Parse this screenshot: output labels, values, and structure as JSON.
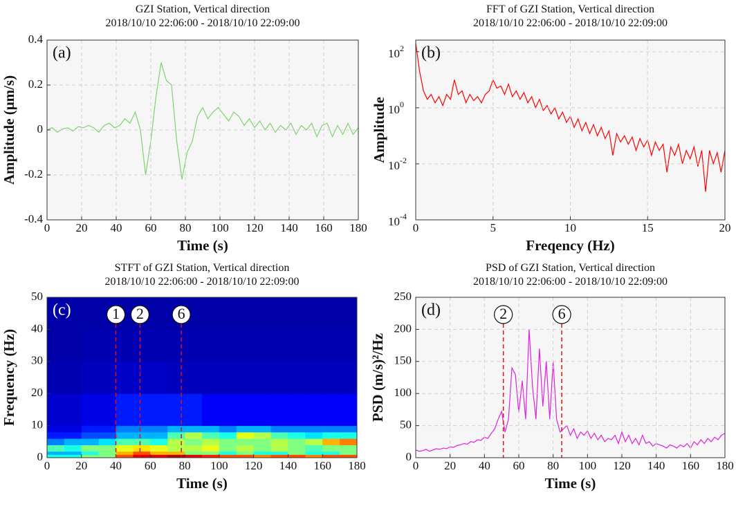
{
  "chart_data": [
    {
      "type": "line",
      "panel_label": "(a)",
      "title": "GZI Station, Vertical direction",
      "subtitle": "2018/10/10 22:06:00 - 2018/10/10 22:09:00",
      "xlabel": "Time (s)",
      "ylabel": "Amplitude (μm/s)",
      "color": "#7fd36f",
      "grid": true,
      "log_y": false,
      "xlim": [
        0,
        180
      ],
      "xticks": [
        0,
        20,
        40,
        60,
        80,
        100,
        120,
        140,
        160,
        180
      ],
      "ylim": [
        -0.4,
        0.4
      ],
      "yticks": [
        -0.4,
        -0.2,
        0,
        0.2,
        0.4
      ],
      "x": [
        0,
        3,
        6,
        9,
        12,
        15,
        18,
        21,
        24,
        27,
        30,
        33,
        36,
        39,
        42,
        45,
        48,
        51,
        54,
        57,
        60,
        63,
        66,
        69,
        72,
        75,
        78,
        81,
        84,
        87,
        90,
        93,
        96,
        99,
        102,
        105,
        108,
        111,
        114,
        117,
        120,
        123,
        126,
        129,
        132,
        135,
        138,
        141,
        144,
        147,
        150,
        153,
        156,
        159,
        162,
        165,
        168,
        171,
        174,
        177,
        180
      ],
      "values": [
        0,
        0.01,
        -0.01,
        0.005,
        0.01,
        -0.005,
        0.015,
        0.01,
        0.02,
        0.01,
        -0.01,
        0.02,
        0.03,
        0.01,
        0.02,
        0.05,
        0.03,
        0.08,
        0.0,
        -0.2,
        -0.05,
        0.15,
        0.3,
        0.22,
        0.2,
        -0.05,
        -0.22,
        -0.1,
        -0.05,
        0.06,
        0.1,
        0.05,
        0.08,
        0.1,
        0.07,
        0.04,
        0.08,
        0.06,
        0.02,
        0.05,
        0.01,
        0.04,
        0.0,
        0.03,
        -0.01,
        0.02,
        0.0,
        0.03,
        -0.02,
        0.02,
        0.0,
        0.03,
        -0.03,
        0.02,
        0.03,
        -0.03,
        0.02,
        -0.02,
        0.03,
        -0.02,
        0.01
      ]
    },
    {
      "type": "line",
      "panel_label": "(b)",
      "title": "FFT of GZI Station, Vertical direction",
      "subtitle": "2018/10/10 22:06:00 - 2018/10/10 22:09:00",
      "xlabel": "Freqency (Hz)",
      "ylabel": "Amplitude",
      "color": "#ff0000",
      "grid": true,
      "log_y": true,
      "xlim": [
        0,
        20
      ],
      "xticks": [
        0,
        5,
        10,
        15,
        20
      ],
      "ylim": [
        0.0001,
        260
      ],
      "yticks": [
        {
          "value": 0.0001,
          "label": "10",
          "exponent": "-4"
        },
        {
          "value": 0.01,
          "label": "10",
          "exponent": "-2"
        },
        {
          "value": 1,
          "label": "10",
          "exponent": "0"
        },
        {
          "value": 100,
          "label": "10",
          "exponent": "2"
        }
      ],
      "x": [
        0,
        0.25,
        0.5,
        0.75,
        1,
        1.25,
        1.5,
        1.75,
        2,
        2.25,
        2.5,
        2.75,
        3,
        3.25,
        3.5,
        3.75,
        4,
        4.25,
        4.5,
        4.75,
        5,
        5.25,
        5.5,
        5.75,
        6,
        6.25,
        6.5,
        6.75,
        7,
        7.25,
        7.5,
        7.75,
        8,
        8.25,
        8.5,
        8.75,
        9,
        9.25,
        9.5,
        9.75,
        10,
        10.25,
        10.5,
        10.75,
        11,
        11.25,
        11.5,
        11.75,
        12,
        12.25,
        12.5,
        12.75,
        13,
        13.25,
        13.5,
        13.75,
        14,
        14.25,
        14.5,
        14.75,
        15,
        15.25,
        15.5,
        15.75,
        16,
        16.25,
        16.5,
        16.75,
        17,
        17.25,
        17.5,
        17.75,
        18,
        18.25,
        18.5,
        18.75,
        19,
        19.25,
        19.5,
        19.75,
        20
      ],
      "values": [
        200,
        20,
        4,
        2,
        3,
        1.5,
        2.5,
        1.2,
        3,
        2,
        10,
        3,
        4,
        1.5,
        3,
        1.8,
        2.5,
        1.5,
        3,
        4,
        10,
        5,
        6,
        3,
        7,
        2.5,
        4,
        2,
        3.5,
        1.5,
        2.5,
        1,
        2,
        0.8,
        1.2,
        0.6,
        1,
        0.4,
        0.7,
        0.3,
        0.5,
        0.2,
        0.4,
        0.15,
        0.3,
        0.12,
        0.25,
        0.1,
        0.2,
        0.08,
        0.15,
        0.02,
        0.12,
        0.06,
        0.1,
        0.05,
        0.09,
        0.03,
        0.08,
        0.04,
        0.07,
        0.02,
        0.06,
        0.03,
        0.05,
        0.005,
        0.04,
        0.02,
        0.05,
        0.01,
        0.03,
        0.015,
        0.04,
        0.008,
        0.03,
        0.001,
        0.03,
        0.01,
        0.025,
        0.005,
        0.03
      ]
    },
    {
      "type": "heatmap",
      "panel_label": "(c)",
      "title": "STFT of GZI Station, Vertical direction",
      "subtitle": "2018/10/10 22:06:00 - 2018/10/10 22:09:00",
      "xlabel": "Time (s)",
      "ylabel": "Frequency (Hz)",
      "log_y": false,
      "xlim": [
        0,
        180
      ],
      "xticks": [
        0,
        20,
        40,
        60,
        80,
        100,
        120,
        140,
        160,
        180
      ],
      "ylim": [
        0,
        50
      ],
      "yticks": [
        0,
        10,
        20,
        30,
        40,
        50
      ],
      "x_edges": [
        0,
        10,
        20,
        30,
        40,
        50,
        60,
        70,
        80,
        90,
        100,
        110,
        120,
        130,
        140,
        150,
        160,
        170,
        180
      ],
      "y_edges": [
        0,
        1,
        2,
        4,
        6,
        8,
        10,
        20,
        30,
        40,
        50
      ],
      "values": [
        [
          0.4,
          0.4,
          0.5,
          0.5,
          0.8,
          0.9,
          0.9,
          0.95,
          0.9,
          0.85,
          0.8,
          0.8,
          0.75,
          0.8,
          0.8,
          0.75,
          0.8,
          0.8
        ],
        [
          0.3,
          0.3,
          0.4,
          0.5,
          0.7,
          0.8,
          0.7,
          0.7,
          0.5,
          0.5,
          0.4,
          0.5,
          0.4,
          0.4,
          0.5,
          0.4,
          0.4,
          0.5
        ],
        [
          0.45,
          0.4,
          0.5,
          0.5,
          0.6,
          0.65,
          0.6,
          0.55,
          0.55,
          0.6,
          0.5,
          0.55,
          0.5,
          0.55,
          0.5,
          0.45,
          0.5,
          0.5
        ],
        [
          0.25,
          0.3,
          0.3,
          0.35,
          0.45,
          0.45,
          0.4,
          0.55,
          0.5,
          0.55,
          0.5,
          0.5,
          0.5,
          0.55,
          0.5,
          0.55,
          0.7,
          0.75
        ],
        [
          0.15,
          0.15,
          0.2,
          0.2,
          0.3,
          0.3,
          0.3,
          0.45,
          0.55,
          0.45,
          0.4,
          0.6,
          0.55,
          0.45,
          0.4,
          0.35,
          0.4,
          0.4
        ],
        [
          0.1,
          0.1,
          0.15,
          0.15,
          0.25,
          0.25,
          0.25,
          0.3,
          0.3,
          0.3,
          0.25,
          0.3,
          0.3,
          0.25,
          0.25,
          0.25,
          0.25,
          0.25
        ],
        [
          0.08,
          0.08,
          0.1,
          0.1,
          0.15,
          0.15,
          0.15,
          0.15,
          0.15,
          0.12,
          0.12,
          0.12,
          0.12,
          0.12,
          0.12,
          0.12,
          0.12,
          0.12
        ],
        [
          0.05,
          0.05,
          0.06,
          0.06,
          0.07,
          0.07,
          0.07,
          0.06,
          0.06,
          0.06,
          0.06,
          0.06,
          0.06,
          0.06,
          0.06,
          0.06,
          0.06,
          0.06
        ],
        [
          0.04,
          0.04,
          0.05,
          0.05,
          0.05,
          0.05,
          0.05,
          0.05,
          0.05,
          0.05,
          0.05,
          0.05,
          0.05,
          0.05,
          0.05,
          0.05,
          0.05,
          0.05
        ],
        [
          0.04,
          0.04,
          0.04,
          0.04,
          0.04,
          0.04,
          0.04,
          0.04,
          0.04,
          0.04,
          0.04,
          0.04,
          0.04,
          0.04,
          0.04,
          0.04,
          0.04,
          0.04
        ]
      ],
      "markers": [
        {
          "x": 40,
          "label": "1"
        },
        {
          "x": 54,
          "label": "2"
        },
        {
          "x": 78,
          "label": "6"
        }
      ]
    },
    {
      "type": "line",
      "panel_label": "(d)",
      "title": "PSD of GZI Station, Vertical direction",
      "subtitle": "2018/10/10 22:06:00 - 2018/10/10 22:09:00",
      "xlabel": "Time (s)",
      "ylabel": "PSD (m/s)²/Hz",
      "color": "#e020e0",
      "grid": true,
      "log_y": false,
      "xlim": [
        0,
        180
      ],
      "xticks": [
        0,
        20,
        40,
        60,
        80,
        100,
        120,
        140,
        160,
        180
      ],
      "ylim": [
        0,
        250
      ],
      "yticks": [
        0,
        50,
        100,
        150,
        200,
        250
      ],
      "x": [
        0,
        2,
        4,
        6,
        8,
        10,
        12,
        14,
        16,
        18,
        20,
        22,
        24,
        26,
        28,
        30,
        32,
        34,
        36,
        38,
        40,
        42,
        44,
        46,
        48,
        50,
        52,
        54,
        56,
        58,
        60,
        62,
        64,
        66,
        68,
        70,
        72,
        74,
        76,
        78,
        80,
        82,
        84,
        86,
        88,
        90,
        92,
        94,
        96,
        98,
        100,
        102,
        104,
        106,
        108,
        110,
        112,
        114,
        116,
        118,
        120,
        122,
        124,
        126,
        128,
        130,
        132,
        134,
        136,
        138,
        140,
        142,
        144,
        146,
        148,
        150,
        152,
        154,
        156,
        158,
        160,
        162,
        164,
        166,
        168,
        170,
        172,
        174,
        176,
        178,
        180
      ],
      "values": [
        12,
        10,
        11,
        13,
        10,
        12,
        14,
        13,
        15,
        14,
        17,
        16,
        19,
        20,
        22,
        21,
        25,
        24,
        28,
        27,
        32,
        30,
        38,
        45,
        60,
        72,
        40,
        60,
        140,
        130,
        70,
        120,
        60,
        200,
        110,
        60,
        170,
        80,
        150,
        60,
        150,
        60,
        40,
        45,
        50,
        35,
        45,
        30,
        40,
        35,
        42,
        30,
        38,
        28,
        35,
        25,
        30,
        28,
        35,
        22,
        40,
        25,
        35,
        22,
        30,
        20,
        35,
        22,
        25,
        18,
        22,
        20,
        18,
        15,
        20,
        18,
        15,
        20,
        17,
        22,
        15,
        25,
        20,
        28,
        22,
        30,
        25,
        32,
        28,
        35,
        38
      ],
      "markers": [
        {
          "x": 51,
          "label": "2"
        },
        {
          "x": 85,
          "label": "6"
        }
      ]
    }
  ]
}
